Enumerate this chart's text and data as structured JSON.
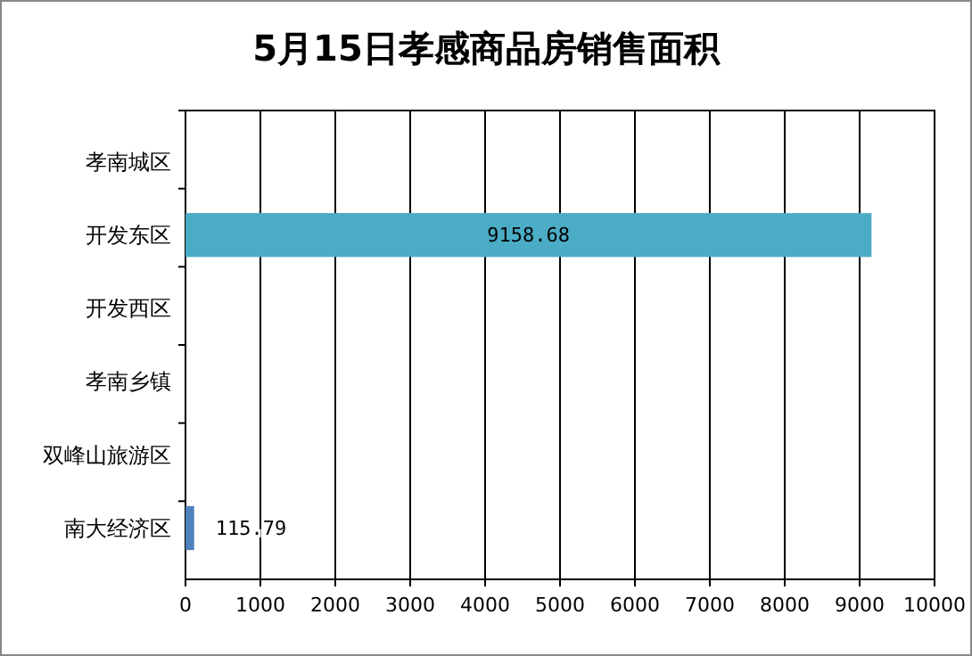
{
  "chart_data": {
    "type": "bar",
    "orientation": "horizontal",
    "title": "5月15日孝感商品房销售面积",
    "categories": [
      "孝南城区",
      "开发东区",
      "开发西区",
      "孝南乡镇",
      "双峰山旅游区",
      "南大经济区"
    ],
    "values": [
      null,
      9158.68,
      null,
      null,
      null,
      115.79
    ],
    "colors": [
      null,
      "#4bacc6",
      null,
      null,
      null,
      "#4f81bd"
    ],
    "data_labels": true,
    "grid": "x",
    "xlim": [
      0,
      10000
    ],
    "xticks": [
      0,
      1000,
      2000,
      3000,
      4000,
      5000,
      6000,
      7000,
      8000,
      9000,
      10000
    ]
  }
}
